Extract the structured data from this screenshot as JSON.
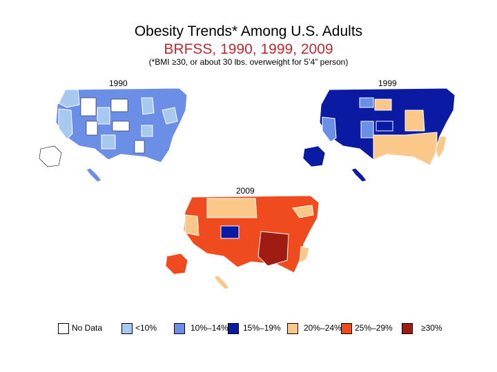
{
  "title": "Obesity Trends* Among U.S. Adults",
  "subtitle": "BRFSS, 1990, 1999, 2009",
  "note": "(*BMI ≥30, or about 30 lbs. overweight for 5’4” person)",
  "maps": [
    {
      "year": "1990"
    },
    {
      "year": "1999"
    },
    {
      "year": "2009"
    }
  ],
  "legend": [
    {
      "label": "No Data",
      "color": "#ffffff"
    },
    {
      "label": "<10%",
      "color": "#a7c9f0"
    },
    {
      "label": "10%–14%",
      "color": "#6b8ee6"
    },
    {
      "label": "15%–19%",
      "color": "#0a1aa3"
    },
    {
      "label": "20%–24%",
      "color": "#fcc88a"
    },
    {
      "label": "25%–29%",
      "color": "#ef4b1f"
    },
    {
      "label": "≥30%",
      "color": "#a01b12"
    }
  ]
}
